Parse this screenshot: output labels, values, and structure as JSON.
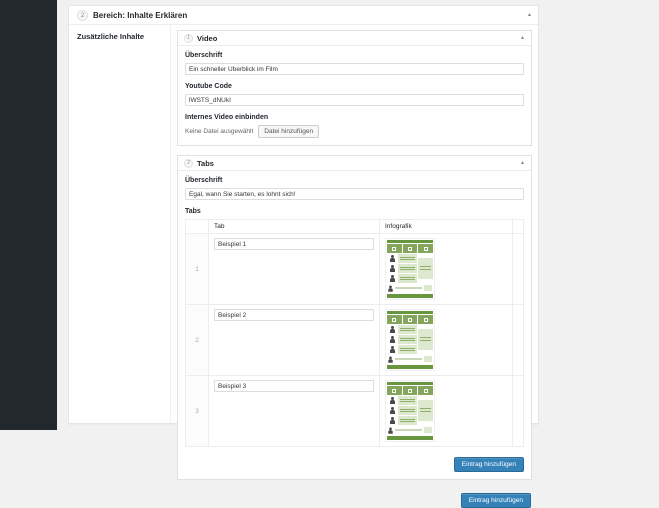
{
  "colors": {
    "admin_sidebar": "#23282d",
    "page_background": "#f1f1f1",
    "primary_button": "#3582b8",
    "infographic_green_dark": "#68963f",
    "infographic_green_mid": "#84a65c",
    "infographic_green_light": "#dde9cf"
  },
  "icons": {
    "collapse_glyph": "▴"
  },
  "panel": {
    "order": "2",
    "title": "Bereich: Inhalte Erklären",
    "field_label": "Zusätzliche Inhalte",
    "layouts": {
      "video": {
        "order": "1",
        "title": "Video",
        "ueberschrift_label": "Überschrift",
        "ueberschrift_value": "Ein schneller Überblick im Film",
        "youtube_label": "Youtube Code",
        "youtube_value": "lWSTS_dNUkI",
        "internal_video_label": "Internes Video einbinden",
        "no_file_text": "Keine Datei ausgewählt",
        "add_file_button": "Datei hinzufügen"
      },
      "tabs": {
        "order": "2",
        "title": "Tabs",
        "ueberschrift_label": "Überschrift",
        "ueberschrift_value": "Egal, wann Sie starten, es lohnt sich!",
        "tabs_label": "Tabs",
        "table": {
          "col_tab": "Tab",
          "col_infografik": "Infografik",
          "rows": [
            {
              "order": "1",
              "tab_value": "Beispiel 1"
            },
            {
              "order": "2",
              "tab_value": "Beispiel 2"
            },
            {
              "order": "3",
              "tab_value": "Beispiel 3"
            }
          ]
        },
        "add_row_button": "Eintrag hinzufügen"
      }
    },
    "add_layout_button": "Eintrag hinzufügen"
  }
}
